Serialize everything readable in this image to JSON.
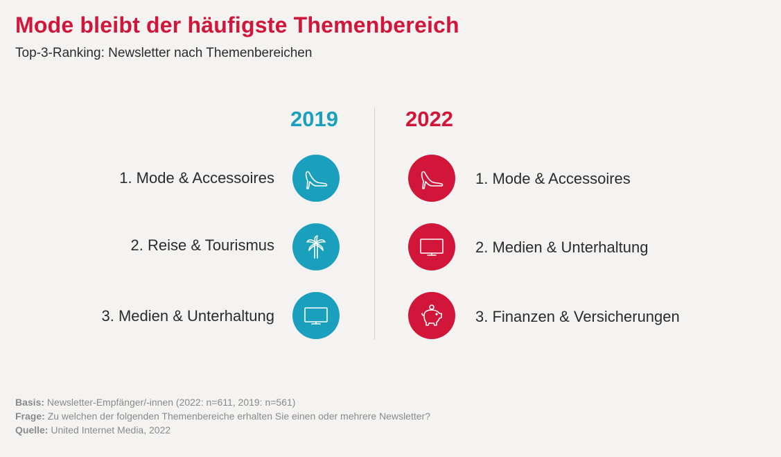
{
  "title": "Mode bleibt der häufigste Themenbereich",
  "subtitle": "Top-3-Ranking: Newsletter nach Themenbereichen",
  "colors": {
    "accent_red": "#d1163a",
    "accent_blue": "#1a9fbd",
    "background": "#f4f3f1"
  },
  "left": {
    "year": "2019",
    "items": [
      {
        "label": "1. Mode & Accessoires",
        "icon": "high-heel-shoe-icon"
      },
      {
        "label": "2. Reise & Tourismus",
        "icon": "palm-tree-icon"
      },
      {
        "label": "3. Medien & Unterhaltung",
        "icon": "tv-monitor-icon"
      }
    ]
  },
  "right": {
    "year": "2022",
    "items": [
      {
        "label": "1. Mode & Accessoires",
        "icon": "high-heel-shoe-icon"
      },
      {
        "label": "2. Medien & Unterhaltung",
        "icon": "tv-monitor-icon"
      },
      {
        "label": "3. Finanzen & Versicherungen",
        "icon": "piggy-bank-icon"
      }
    ]
  },
  "footer": {
    "basis_label": "Basis:",
    "basis_text": "Newsletter-Empfänger/-innen (2022: n=611, 2019: n=561)",
    "frage_label": "Frage:",
    "frage_text": "Zu welchen der folgenden Themenbereiche erhalten Sie einen oder mehrere Newsletter?",
    "quelle_label": "Quelle:",
    "quelle_text": "United Internet Media, 2022"
  }
}
